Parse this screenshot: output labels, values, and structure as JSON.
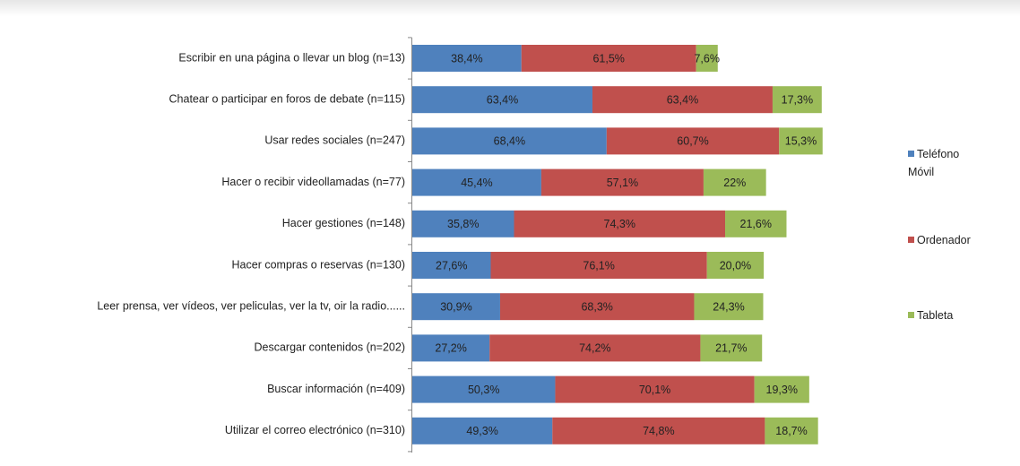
{
  "chart_data": {
    "type": "stacked-bar-horizontal",
    "categories": [
      "Escribir en una página o llevar un blog (n=13)",
      "Chatear o participar en foros de debate (n=115)",
      "Usar redes sociales (n=247)",
      "Hacer o recibir videollamadas (n=77)",
      "Hacer gestiones (n=148)",
      "Hacer compras o reservas (n=130)",
      "Leer prensa, ver vídeos, ver peliculas, ver la tv, oir la radio......",
      "Descargar contenidos (n=202)",
      "Buscar información (n=409)",
      "Utilizar el correo electrónico (n=310)"
    ],
    "series": [
      {
        "name": "Teléfono Móvil",
        "color": "#4f81bd",
        "values": [
          38.4,
          63.4,
          68.4,
          45.4,
          35.8,
          27.6,
          30.9,
          27.2,
          50.3,
          49.3
        ],
        "value_labels": [
          "38,4%",
          "63,4%",
          "68,4%",
          "45,4%",
          "35,8%",
          "27,6%",
          "30,9%",
          "27,2%",
          "50,3%",
          "49,3%"
        ]
      },
      {
        "name": "Ordenador",
        "color": "#c0504d",
        "values": [
          61.5,
          63.4,
          60.7,
          57.1,
          74.3,
          76.1,
          68.3,
          74.2,
          70.1,
          74.8
        ],
        "value_labels": [
          "61,5%",
          "63,4%",
          "60,7%",
          "57,1%",
          "74,3%",
          "76,1%",
          "68,3%",
          "74,2%",
          "70,1%",
          "74,8%"
        ]
      },
      {
        "name": "Tableta",
        "color": "#9bbb59",
        "values": [
          7.6,
          17.3,
          15.3,
          22,
          21.6,
          20.0,
          24.3,
          21.7,
          19.3,
          18.7
        ],
        "value_labels": [
          "7,6%",
          "17,3%",
          "15,3%",
          "22%",
          "21,6%",
          "20,0%",
          "24,3%",
          "21,7%",
          "19,3%",
          "18,7%"
        ]
      }
    ]
  }
}
